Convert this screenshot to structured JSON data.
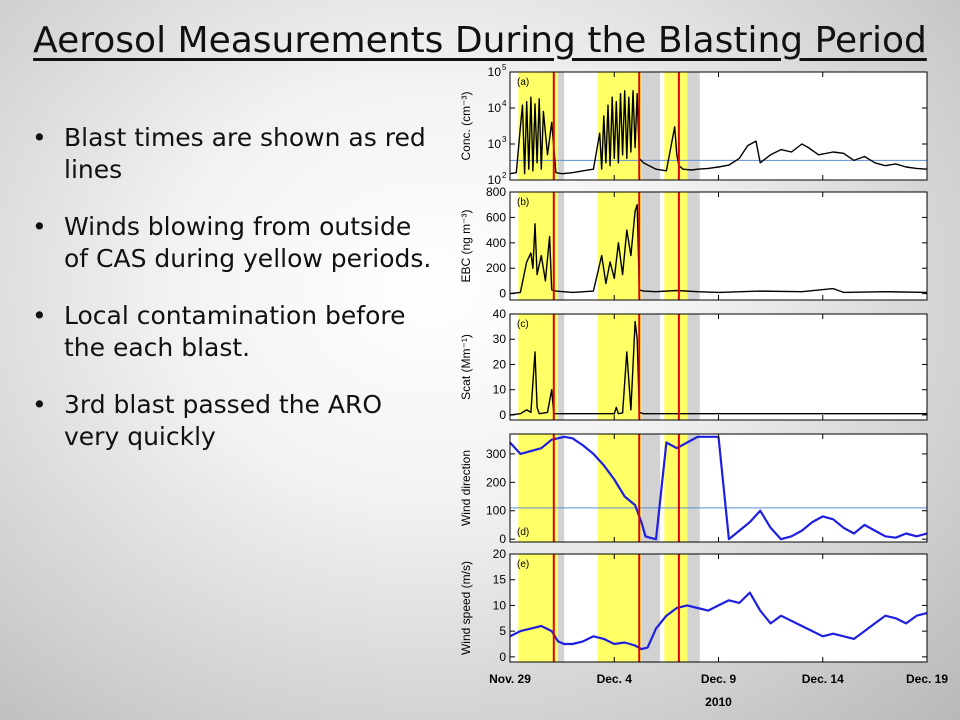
{
  "slide": {
    "title": "Aerosol Measurements During the Blasting Period",
    "bullets": [
      "Blast times are shown as red lines",
      "Winds blowing from outside of CAS during yellow periods.",
      "Local contamination before the each blast.",
      "3rd blast passed the ARO very quickly"
    ]
  },
  "chart_data": {
    "type": "line",
    "xlabel": "2010",
    "x_ticks": [
      "Nov. 29",
      "Dec. 4",
      "Dec. 9",
      "Dec. 14",
      "Dec. 19"
    ],
    "x_tick_values": [
      0,
      5,
      10,
      15,
      20
    ],
    "x_range": [
      0,
      20
    ],
    "blast_lines_x": [
      2.1,
      6.2,
      8.1
    ],
    "yellow_periods": [
      [
        0.4,
        2.3
      ],
      [
        4.2,
        6.3
      ],
      [
        7.4,
        8.5
      ]
    ],
    "grey_periods": [
      [
        2.3,
        2.6
      ],
      [
        6.3,
        7.2
      ],
      [
        8.5,
        9.1
      ]
    ],
    "panels": [
      {
        "id": "a",
        "label": "(a)",
        "ylabel": "Conc. (cm⁻³)",
        "scale": "log",
        "ylim": [
          100,
          100000
        ],
        "y_ticks": [
          {
            "v": 100,
            "t": "10",
            "sup": "2"
          },
          {
            "v": 1000,
            "t": "10",
            "sup": "3"
          },
          {
            "v": 10000,
            "t": "10",
            "sup": "4"
          },
          {
            "v": 100000,
            "t": "10",
            "sup": "5"
          }
        ],
        "reference_line": 350,
        "series": {
          "name": "",
          "color": "#000000",
          "x": [
            0,
            0.3,
            0.5,
            0.6,
            0.7,
            0.8,
            0.9,
            1.0,
            1.1,
            1.2,
            1.3,
            1.4,
            1.5,
            1.6,
            1.8,
            2.0,
            2.2,
            2.5,
            3.0,
            3.5,
            4.0,
            4.3,
            4.4,
            4.5,
            4.6,
            4.7,
            4.8,
            4.9,
            5.0,
            5.1,
            5.2,
            5.3,
            5.4,
            5.5,
            5.6,
            5.7,
            5.8,
            5.9,
            6.0,
            6.1,
            6.2,
            6.4,
            7.0,
            7.5,
            7.9,
            8.0,
            8.1,
            8.3,
            8.7,
            9.0,
            9.5,
            10.0,
            10.5,
            11.0,
            11.4,
            11.8,
            12.0,
            12.5,
            13.0,
            13.5,
            14.0,
            14.3,
            14.8,
            15.5,
            16.0,
            16.5,
            17.0,
            17.5,
            18.0,
            18.5,
            19.0,
            19.5,
            20.0
          ],
          "y": [
            150,
            160,
            3000,
            12000,
            150,
            15000,
            200,
            20000,
            180,
            13000,
            300,
            18000,
            200,
            8000,
            500,
            4000,
            160,
            150,
            160,
            180,
            200,
            2000,
            200,
            6000,
            300,
            12000,
            250,
            20000,
            400,
            15000,
            300,
            25000,
            500,
            30000,
            400,
            20000,
            600,
            30000,
            800,
            25000,
            400,
            300,
            200,
            180,
            3000,
            500,
            250,
            200,
            190,
            200,
            210,
            230,
            260,
            400,
            900,
            1200,
            300,
            500,
            700,
            600,
            1000,
            800,
            500,
            600,
            550,
            350,
            450,
            300,
            250,
            280,
            230,
            210,
            200
          ]
        }
      },
      {
        "id": "b",
        "label": "(b)",
        "ylabel": "EBC (ng m⁻³)",
        "scale": "linear",
        "ylim": [
          -50,
          800
        ],
        "y_ticks": [
          {
            "v": 0,
            "t": "0"
          },
          {
            "v": 200,
            "t": "200"
          },
          {
            "v": 400,
            "t": "400"
          },
          {
            "v": 600,
            "t": "600"
          },
          {
            "v": 800,
            "t": "800"
          }
        ],
        "series": {
          "name": "",
          "color": "#000000",
          "x": [
            0,
            0.5,
            0.8,
            1.0,
            1.1,
            1.2,
            1.3,
            1.5,
            1.7,
            1.9,
            2.0,
            2.2,
            3.0,
            4.0,
            4.4,
            4.6,
            4.8,
            5.0,
            5.2,
            5.4,
            5.6,
            5.8,
            6.0,
            6.1,
            6.2,
            6.4,
            7.0,
            8.0,
            9.0,
            10.0,
            12.0,
            14.0,
            15.5,
            16.0,
            18.0,
            20.0
          ],
          "y": [
            0,
            10,
            250,
            320,
            200,
            550,
            150,
            300,
            100,
            450,
            30,
            20,
            10,
            20,
            300,
            80,
            250,
            120,
            400,
            150,
            500,
            300,
            650,
            700,
            30,
            20,
            15,
            25,
            15,
            10,
            20,
            15,
            40,
            10,
            15,
            10
          ]
        }
      },
      {
        "id": "c",
        "label": "(c)",
        "ylabel": "Scat (Mm⁻¹)",
        "scale": "linear",
        "ylim": [
          -2,
          40
        ],
        "y_ticks": [
          {
            "v": 0,
            "t": "0"
          },
          {
            "v": 10,
            "t": "10"
          },
          {
            "v": 20,
            "t": "20"
          },
          {
            "v": 30,
            "t": "30"
          },
          {
            "v": 40,
            "t": "40"
          }
        ],
        "series": {
          "name": "",
          "color": "#000000",
          "x": [
            0,
            0.5,
            0.8,
            1.0,
            1.2,
            1.3,
            1.4,
            1.8,
            2.0,
            2.1,
            3.0,
            4.0,
            5.0,
            5.1,
            5.2,
            5.4,
            5.6,
            5.8,
            6.0,
            6.1,
            6.2,
            6.4,
            7.0,
            8.0,
            10.0,
            12.0,
            14.0,
            16.0,
            18.0,
            20.0
          ],
          "y": [
            0,
            0.5,
            2,
            1,
            25,
            3,
            0.5,
            1,
            10,
            0.5,
            0.5,
            0.5,
            0.5,
            3,
            0.5,
            0.8,
            25,
            2,
            37,
            30,
            1,
            0.5,
            0.5,
            0.5,
            0.5,
            0.5,
            0.5,
            0.5,
            0.5,
            0.5
          ]
        }
      },
      {
        "id": "d",
        "label": "(d)",
        "ylabel": "Wind direction",
        "scale": "linear",
        "ylim": [
          -10,
          370
        ],
        "y_ticks": [
          {
            "v": 0,
            "t": "0"
          },
          {
            "v": 100,
            "t": "100"
          },
          {
            "v": 200,
            "t": "200"
          },
          {
            "v": 300,
            "t": "300"
          }
        ],
        "reference_line": 110,
        "series": {
          "name": "",
          "color": "#1f1fe0",
          "x": [
            0,
            0.5,
            1.0,
            1.5,
            2.0,
            2.3,
            2.6,
            3.0,
            3.5,
            4.0,
            4.5,
            5.0,
            5.5,
            6.0,
            6.3,
            6.5,
            6.7,
            7.0,
            7.5,
            8.0,
            8.5,
            9.0,
            9.5,
            10.0,
            10.5,
            11.0,
            11.5,
            12.0,
            12.5,
            13.0,
            13.5,
            14.0,
            14.5,
            15.0,
            15.5,
            16.0,
            16.5,
            17.0,
            17.5,
            18.0,
            18.5,
            19.0,
            19.5,
            20.0
          ],
          "y": [
            340,
            300,
            310,
            320,
            350,
            355,
            360,
            355,
            330,
            300,
            260,
            210,
            150,
            120,
            60,
            10,
            5,
            0,
            340,
            320,
            340,
            360,
            360,
            360,
            0,
            30,
            60,
            100,
            40,
            0,
            10,
            30,
            60,
            80,
            70,
            40,
            20,
            50,
            30,
            10,
            5,
            20,
            10,
            20
          ]
        }
      },
      {
        "id": "e",
        "label": "(e)",
        "ylabel": "Wind speed (m/s)",
        "scale": "linear",
        "ylim": [
          -1,
          20
        ],
        "y_ticks": [
          {
            "v": 0,
            "t": "0"
          },
          {
            "v": 5,
            "t": "5"
          },
          {
            "v": 10,
            "t": "10"
          },
          {
            "v": 15,
            "t": "15"
          },
          {
            "v": 20,
            "t": "20"
          }
        ],
        "series": {
          "name": "",
          "color": "#1f1fe0",
          "x": [
            0,
            0.5,
            1.0,
            1.5,
            2.0,
            2.3,
            2.6,
            3.0,
            3.5,
            4.0,
            4.5,
            5.0,
            5.5,
            6.0,
            6.3,
            6.6,
            7.0,
            7.5,
            8.0,
            8.5,
            9.0,
            9.5,
            10.0,
            10.5,
            11.0,
            11.5,
            12.0,
            12.5,
            13.0,
            13.5,
            14.0,
            14.5,
            15.0,
            15.5,
            16.0,
            16.5,
            17.0,
            17.5,
            18.0,
            18.5,
            19.0,
            19.5,
            20.0
          ],
          "y": [
            4,
            5,
            5.5,
            6,
            5,
            3,
            2.5,
            2.5,
            3,
            4,
            3.5,
            2.5,
            2.8,
            2.2,
            1.5,
            1.8,
            5.5,
            8,
            9.5,
            10,
            9.5,
            9,
            10,
            11,
            10.5,
            12.5,
            9,
            6.5,
            8,
            7,
            6,
            5,
            4,
            4.5,
            4,
            3.5,
            5,
            6.5,
            8,
            7.5,
            6.5,
            8,
            8.5
          ]
        }
      }
    ]
  }
}
